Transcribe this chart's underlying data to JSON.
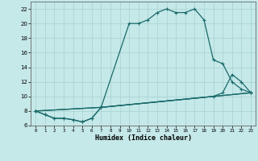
{
  "xlabel": "Humidex (Indice chaleur)",
  "bg_color": "#c5e8e8",
  "line_color": "#1a6b6b",
  "grid_color": "#a8d0d0",
  "xlim": [
    -0.5,
    23.5
  ],
  "ylim": [
    6,
    23
  ],
  "xticks": [
    0,
    1,
    2,
    3,
    4,
    5,
    6,
    7,
    8,
    9,
    10,
    11,
    12,
    13,
    14,
    15,
    16,
    17,
    18,
    19,
    20,
    21,
    22,
    23
  ],
  "yticks": [
    6,
    8,
    10,
    12,
    14,
    16,
    18,
    20,
    22
  ],
  "line1_x": [
    0,
    1,
    2,
    3,
    4,
    5,
    6,
    7,
    10,
    11,
    12,
    13,
    14,
    15,
    16,
    17,
    18,
    19,
    20,
    21,
    22,
    23
  ],
  "line1_y": [
    8,
    7.5,
    7,
    7,
    6.8,
    6.5,
    7,
    8.5,
    20,
    20,
    20.5,
    21.5,
    22,
    21.5,
    21.5,
    22,
    20.5,
    15,
    14.5,
    12,
    11,
    10.5
  ],
  "line2_x": [
    0,
    1,
    2,
    3,
    4,
    5,
    6,
    7,
    23
  ],
  "line2_y": [
    8,
    7.5,
    7,
    7,
    6.8,
    6.5,
    7,
    8.5,
    10.5
  ],
  "line3_x": [
    0,
    7,
    23
  ],
  "line3_y": [
    8,
    8.5,
    10.5
  ],
  "line4_x": [
    0,
    7,
    19,
    20,
    21,
    22,
    23
  ],
  "line4_y": [
    8,
    8.5,
    10,
    10.5,
    13,
    12,
    10.5
  ]
}
